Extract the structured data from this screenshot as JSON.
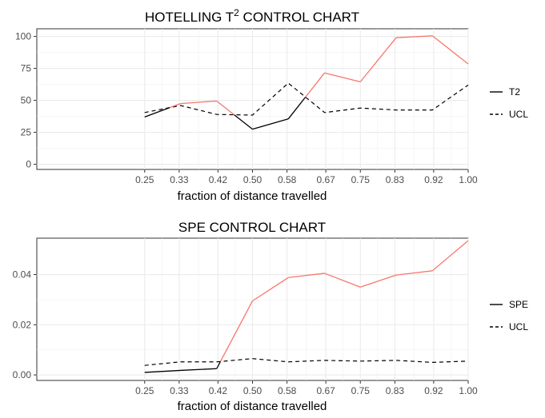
{
  "chart_data": [
    {
      "type": "line",
      "title": "HOTELLING T",
      "title_superscript": "2",
      "xlabel": "fraction of distance travelled",
      "ylabel": "",
      "x_ticks": [
        "0.25",
        "0.33",
        "0.42",
        "0.50",
        "0.58",
        "0.67",
        "0.75",
        "0.83",
        "0.92",
        "1.00"
      ],
      "y_ticks": [
        "0",
        "25",
        "50",
        "75",
        "100"
      ],
      "title_suffix": " CONTROL CHART",
      "xlim": [
        0,
        1.0
      ],
      "ylim": [
        -4,
        106
      ],
      "grid": true,
      "legend_position": "right",
      "colors": {
        "in_control": "#000000",
        "out_of_control": "#f8766d"
      },
      "series": [
        {
          "name": "T2",
          "line": "solid",
          "x": [
            0.25,
            0.333,
            0.417,
            0.5,
            0.583,
            0.667,
            0.75,
            0.833,
            0.917,
            1.0
          ],
          "values": [
            37,
            47.5,
            49.5,
            27.5,
            35.5,
            71.5,
            64.5,
            99,
            100.5,
            78.5
          ]
        },
        {
          "name": "UCL",
          "line": "dashed",
          "x": [
            0.25,
            0.333,
            0.417,
            0.5,
            0.583,
            0.667,
            0.75,
            0.833,
            0.917,
            1.0
          ],
          "values": [
            40.5,
            46,
            39,
            38.5,
            63.5,
            40.5,
            44,
            42.5,
            42.5,
            62
          ]
        }
      ]
    },
    {
      "type": "line",
      "title": "SPE CONTROL CHART",
      "xlabel": "fraction of distance travelled",
      "ylabel": "",
      "x_ticks": [
        "0.25",
        "0.33",
        "0.42",
        "0.50",
        "0.58",
        "0.67",
        "0.75",
        "0.83",
        "0.92",
        "1.00"
      ],
      "y_ticks": [
        "0.00",
        "0.02",
        "0.04"
      ],
      "xlim": [
        0,
        1.0
      ],
      "ylim": [
        -0.0022,
        0.0545
      ],
      "grid": true,
      "legend_position": "right",
      "colors": {
        "in_control": "#000000",
        "out_of_control": "#f8766d"
      },
      "series": [
        {
          "name": "SPE",
          "line": "solid",
          "x": [
            0.25,
            0.333,
            0.417,
            0.5,
            0.583,
            0.667,
            0.75,
            0.833,
            0.917,
            1.0
          ],
          "values": [
            0.001,
            0.0018,
            0.0025,
            0.0295,
            0.0388,
            0.0405,
            0.035,
            0.0398,
            0.0415,
            0.0535
          ]
        },
        {
          "name": "UCL",
          "line": "dashed",
          "x": [
            0.25,
            0.333,
            0.417,
            0.5,
            0.583,
            0.667,
            0.75,
            0.833,
            0.917,
            1.0
          ],
          "values": [
            0.0038,
            0.0052,
            0.0052,
            0.0065,
            0.0052,
            0.0058,
            0.0055,
            0.0058,
            0.005,
            0.0055
          ]
        }
      ]
    }
  ]
}
